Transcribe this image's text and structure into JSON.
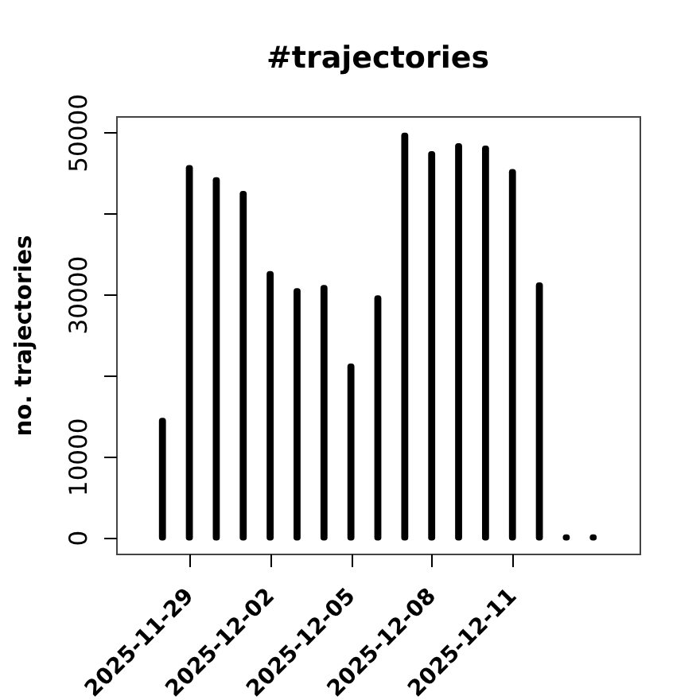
{
  "chart_data": {
    "type": "bar",
    "title": "#trajectories",
    "ylabel": "no. trajectories",
    "x": [
      "2025-11-28",
      "2025-11-29",
      "2025-11-30",
      "2025-12-01",
      "2025-12-02",
      "2025-12-03",
      "2025-12-04",
      "2025-12-05",
      "2025-12-06",
      "2025-12-07",
      "2025-12-08",
      "2025-12-09",
      "2025-12-10",
      "2025-12-11",
      "2025-12-12",
      "2025-12-13",
      "2025-12-14"
    ],
    "values": [
      14400,
      45600,
      44100,
      42400,
      32500,
      30400,
      30800,
      21100,
      29500,
      49600,
      47300,
      48300,
      48000,
      45100,
      31100,
      0,
      0
    ],
    "color": "#000000",
    "xlim": [
      "2025-11-26T06:43",
      "2025-12-15T17:17"
    ],
    "xticks": [
      "2025-11-29",
      "2025-12-02",
      "2025-12-05",
      "2025-12-08",
      "2025-12-11"
    ],
    "ylim": [
      -2000,
      52000
    ],
    "yticks": [
      0,
      10000,
      {
        "value": 20000,
        "label": null
      },
      30000,
      {
        "value": 40000,
        "label": null
      },
      50000
    ]
  }
}
